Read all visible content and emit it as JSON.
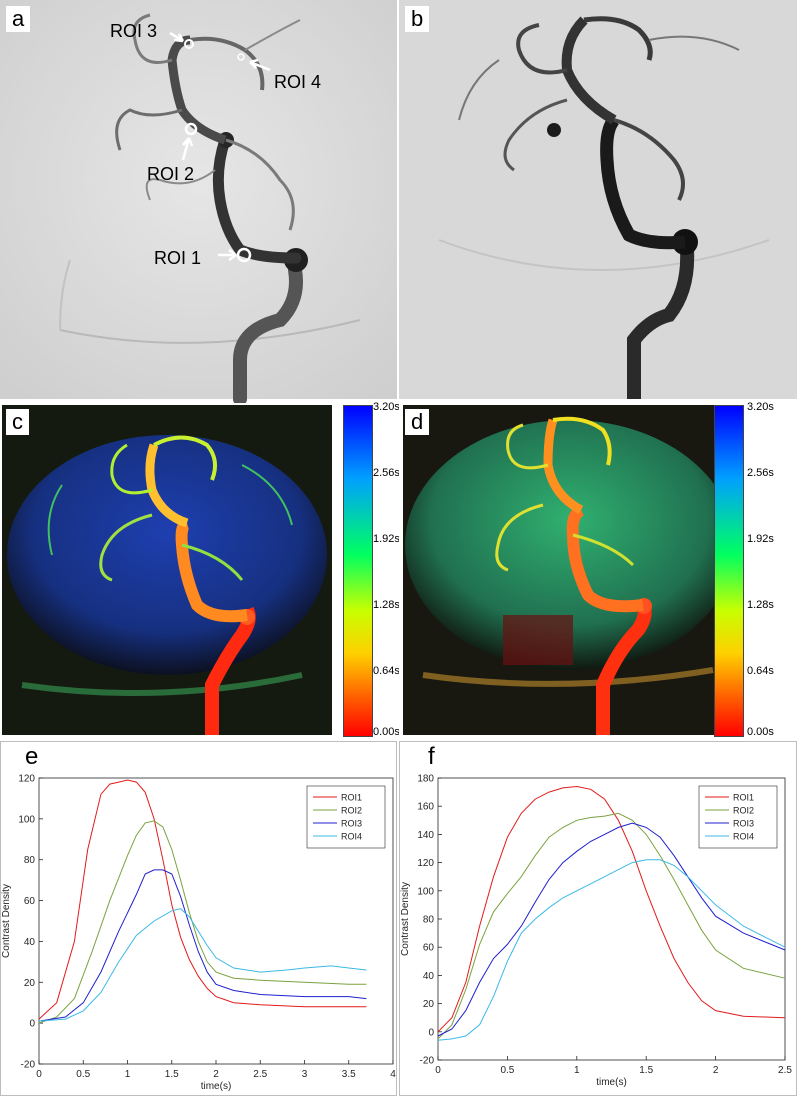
{
  "panels": {
    "a": {
      "label": "a",
      "roi_labels": [
        "ROI 1",
        "ROI 2",
        "ROI 3",
        "ROI 4"
      ]
    },
    "b": {
      "label": "b"
    },
    "c": {
      "label": "c",
      "colorbar_ticks": [
        "3.20s",
        "2.56s",
        "1.92s",
        "1.28s",
        "0.64s",
        "0.00s"
      ]
    },
    "d": {
      "label": "d",
      "colorbar_ticks": [
        "3.20s",
        "2.56s",
        "1.92s",
        "1.28s",
        "0.64s",
        "0.00s"
      ]
    },
    "e": {
      "label": "e"
    },
    "f": {
      "label": "f"
    }
  },
  "colors": {
    "ROI1": "#e31a1c",
    "ROI2": "#7ba23f",
    "ROI3": "#1f1fcf",
    "ROI4": "#3cb9e8",
    "colorbar": [
      "#0000ff",
      "#00a0ff",
      "#00ff60",
      "#c8ff00",
      "#ffd000",
      "#ff5000",
      "#ff0000"
    ]
  },
  "chart_data": [
    {
      "id": "e",
      "type": "line",
      "xlabel": "time(s)",
      "ylabel": "Contrast Density",
      "xlim": [
        0,
        4
      ],
      "ylim": [
        -20,
        120
      ],
      "xticks": [
        0,
        0.5,
        1,
        1.5,
        2,
        2.5,
        3,
        3.5,
        4
      ],
      "yticks": [
        -20,
        0,
        20,
        40,
        60,
        80,
        100,
        120
      ],
      "legend": "top-right",
      "series": [
        {
          "name": "ROI1",
          "x": [
            0,
            0.2,
            0.4,
            0.55,
            0.7,
            0.8,
            0.9,
            1.0,
            1.1,
            1.2,
            1.3,
            1.4,
            1.5,
            1.6,
            1.7,
            1.8,
            1.9,
            2.0,
            2.2,
            2.5,
            3.0,
            3.5,
            3.7
          ],
          "y": [
            2,
            10,
            40,
            85,
            112,
            117,
            118,
            119,
            118,
            113,
            100,
            80,
            58,
            42,
            31,
            23,
            17,
            13,
            10,
            9,
            8,
            8,
            8
          ]
        },
        {
          "name": "ROI2",
          "x": [
            0,
            0.2,
            0.4,
            0.6,
            0.8,
            1.0,
            1.1,
            1.2,
            1.3,
            1.4,
            1.5,
            1.6,
            1.7,
            1.8,
            1.9,
            2.0,
            2.2,
            2.5,
            3.0,
            3.5,
            3.7
          ],
          "y": [
            0,
            3,
            12,
            35,
            60,
            82,
            92,
            98,
            99,
            96,
            85,
            70,
            54,
            40,
            30,
            25,
            22,
            21,
            20,
            19,
            19
          ]
        },
        {
          "name": "ROI3",
          "x": [
            0,
            0.3,
            0.5,
            0.7,
            0.9,
            1.1,
            1.2,
            1.3,
            1.4,
            1.5,
            1.6,
            1.7,
            1.8,
            1.9,
            2.0,
            2.2,
            2.5,
            3.0,
            3.5,
            3.7
          ],
          "y": [
            1,
            3,
            10,
            25,
            45,
            63,
            73,
            75,
            75,
            73,
            62,
            48,
            35,
            25,
            19,
            16,
            14,
            13,
            13,
            12
          ]
        },
        {
          "name": "ROI4",
          "x": [
            0,
            0.3,
            0.5,
            0.7,
            0.9,
            1.1,
            1.3,
            1.5,
            1.6,
            1.7,
            1.8,
            1.9,
            2.0,
            2.2,
            2.5,
            2.8,
            3.0,
            3.3,
            3.5,
            3.7
          ],
          "y": [
            1,
            2,
            6,
            15,
            30,
            43,
            50,
            55,
            56,
            52,
            45,
            38,
            32,
            27,
            25,
            26,
            27,
            28,
            27,
            26
          ]
        }
      ]
    },
    {
      "id": "f",
      "type": "line",
      "xlabel": "time(s)",
      "ylabel": "Contrast Density",
      "xlim": [
        0,
        2.5
      ],
      "ylim": [
        -20,
        180
      ],
      "xticks": [
        0,
        0.5,
        1,
        1.5,
        2,
        2.5
      ],
      "yticks": [
        -20,
        0,
        20,
        40,
        60,
        80,
        100,
        120,
        140,
        160,
        180
      ],
      "legend": "top-right",
      "series": [
        {
          "name": "ROI1",
          "x": [
            0,
            0.1,
            0.2,
            0.3,
            0.4,
            0.5,
            0.6,
            0.7,
            0.8,
            0.9,
            1.0,
            1.1,
            1.2,
            1.3,
            1.4,
            1.5,
            1.6,
            1.7,
            1.8,
            1.9,
            2.0,
            2.2,
            2.5
          ],
          "y": [
            0,
            10,
            35,
            75,
            110,
            138,
            155,
            165,
            170,
            173,
            174,
            172,
            165,
            150,
            128,
            100,
            75,
            52,
            35,
            22,
            15,
            11,
            10
          ]
        },
        {
          "name": "ROI2",
          "x": [
            0,
            0.1,
            0.2,
            0.3,
            0.4,
            0.5,
            0.6,
            0.7,
            0.8,
            0.9,
            1.0,
            1.1,
            1.2,
            1.3,
            1.4,
            1.5,
            1.6,
            1.7,
            1.8,
            1.9,
            2.0,
            2.2,
            2.5
          ],
          "y": [
            -5,
            5,
            30,
            62,
            85,
            98,
            110,
            125,
            138,
            145,
            150,
            152,
            153,
            155,
            150,
            140,
            125,
            108,
            90,
            72,
            58,
            45,
            38
          ]
        },
        {
          "name": "ROI3",
          "x": [
            0,
            0.1,
            0.2,
            0.3,
            0.4,
            0.5,
            0.6,
            0.7,
            0.8,
            0.9,
            1.0,
            1.1,
            1.2,
            1.3,
            1.4,
            1.5,
            1.6,
            1.7,
            1.8,
            1.9,
            2.0,
            2.2,
            2.5
          ],
          "y": [
            -3,
            2,
            15,
            35,
            52,
            62,
            75,
            92,
            108,
            120,
            128,
            135,
            140,
            145,
            148,
            145,
            138,
            125,
            110,
            95,
            82,
            70,
            58
          ]
        },
        {
          "name": "ROI4",
          "x": [
            0,
            0.1,
            0.2,
            0.3,
            0.4,
            0.5,
            0.6,
            0.7,
            0.8,
            0.9,
            1.0,
            1.1,
            1.2,
            1.3,
            1.4,
            1.5,
            1.6,
            1.7,
            1.8,
            1.9,
            2.0,
            2.2,
            2.5
          ],
          "y": [
            -6,
            -5,
            -3,
            5,
            25,
            50,
            70,
            80,
            88,
            95,
            100,
            105,
            110,
            115,
            120,
            122,
            122,
            118,
            110,
            100,
            90,
            75,
            60
          ]
        }
      ]
    }
  ]
}
